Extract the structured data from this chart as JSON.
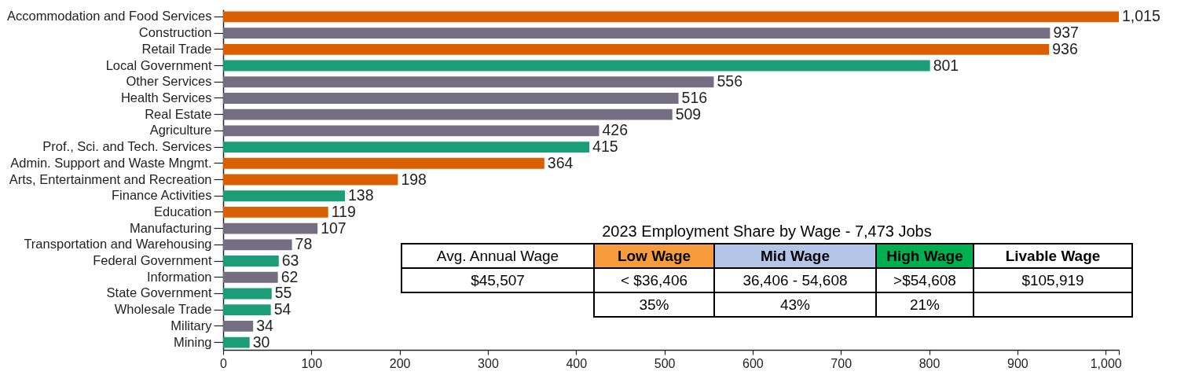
{
  "chart_data": [
    {
      "type": "bar",
      "orientation": "horizontal",
      "categories": [
        "Accommodation and Food Services",
        "Construction",
        "Retail Trade",
        "Local Government",
        "Other Services",
        "Health Services",
        "Real Estate",
        "Agriculture",
        "Prof., Sci. and Tech. Services",
        "Admin. Support and Waste Mngmt.",
        "Arts, Entertainment and Recreation",
        "Finance Activities",
        "Education",
        "Manufacturing",
        "Transportation and Warehousing",
        "Federal Government",
        "Information",
        "State Government",
        "Wholesale Trade",
        "Military",
        "Mining"
      ],
      "values": [
        1015,
        937,
        936,
        801,
        556,
        516,
        509,
        426,
        415,
        364,
        198,
        138,
        119,
        107,
        78,
        63,
        62,
        55,
        54,
        34,
        30
      ],
      "colors": [
        "#d95f02",
        "#736e81",
        "#d95f02",
        "#1b9e77",
        "#736e81",
        "#736e81",
        "#736e81",
        "#736e81",
        "#1b9e77",
        "#d95f02",
        "#d95f02",
        "#1b9e77",
        "#d95f02",
        "#736e81",
        "#736e81",
        "#1b9e77",
        "#736e81",
        "#1b9e77",
        "#1b9e77",
        "#736e81",
        "#1b9e77"
      ],
      "value_labels": [
        "1,015",
        "937",
        "936",
        "801",
        "556",
        "516",
        "509",
        "426",
        "415",
        "364",
        "198",
        "138",
        "119",
        "107",
        "78",
        "63",
        "62",
        "55",
        "54",
        "34",
        "30"
      ],
      "xlim": [
        0,
        1015
      ],
      "xticks": [
        0,
        100,
        200,
        300,
        400,
        500,
        600,
        700,
        800,
        900,
        {
          "value": 1000,
          "label": "1,000"
        },
        {
          "value": 1015,
          "label": null
        }
      ]
    },
    {
      "type": "other",
      "title": "2023 Employment Share by Wage - 7,473 Jobs",
      "annotations": [
        "Avg. Annual Wage",
        "Low Wage",
        "Mid Wage",
        "High Wage",
        "Livable Wage",
        "$45,507",
        "< $36,406",
        "36,406 - 54,608",
        ">$54,608",
        "$105,919",
        "35%",
        "43%",
        "21%"
      ]
    }
  ]
}
